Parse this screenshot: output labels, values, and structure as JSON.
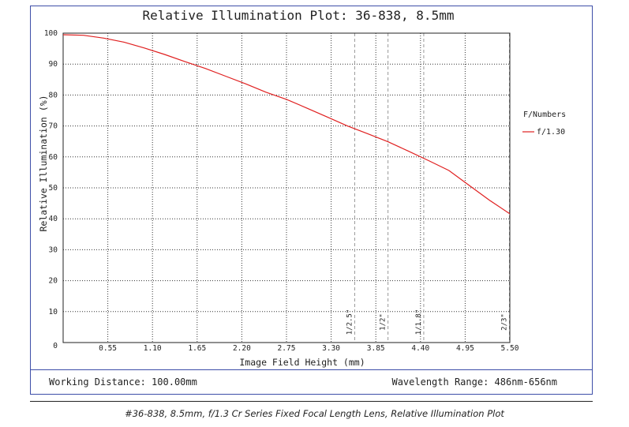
{
  "chart_data": {
    "type": "line",
    "title": "Relative Illumination Plot: 36-838, 8.5mm",
    "xlabel": "Image Field Height (mm)",
    "ylabel": "Relative Illumination (%)",
    "xlim": [
      0,
      5.5
    ],
    "ylim": [
      0,
      100
    ],
    "x_ticks": [
      "0.55",
      "1.10",
      "1.65",
      "2.20",
      "2.75",
      "3.30",
      "3.85",
      "4.40",
      "4.95",
      "5.50"
    ],
    "x_tick_values": [
      0.55,
      1.1,
      1.65,
      2.2,
      2.75,
      3.3,
      3.85,
      4.4,
      4.95,
      5.5
    ],
    "y_ticks": [
      "0",
      "10",
      "20",
      "30",
      "40",
      "50",
      "60",
      "70",
      "80",
      "90",
      "100"
    ],
    "y_tick_values": [
      0,
      10,
      20,
      30,
      40,
      50,
      60,
      70,
      80,
      90,
      100
    ],
    "grid": true,
    "legend_title": "F/Numbers",
    "legend_position": "right",
    "series": [
      {
        "name": "f/1.30",
        "color": "#e02020",
        "x": [
          0,
          0.25,
          0.5,
          0.75,
          1.0,
          1.25,
          1.5,
          1.75,
          2.0,
          2.25,
          2.5,
          2.75,
          3.0,
          3.25,
          3.5,
          3.75,
          4.0,
          4.25,
          4.5,
          4.75,
          5.0,
          5.25,
          5.5
        ],
        "y": [
          99.5,
          99.3,
          98.4,
          97.1,
          95.2,
          93.1,
          90.8,
          88.6,
          86.1,
          83.6,
          80.9,
          78.6,
          75.8,
          72.9,
          70.0,
          67.5,
          64.9,
          61.9,
          58.8,
          55.6,
          50.8,
          46.0,
          41.6
        ]
      }
    ],
    "sensor_markers": [
      {
        "label": "1/2.5\"",
        "x": 3.59
      },
      {
        "label": "1/2\"",
        "x": 4.0
      },
      {
        "label": "1/1.8\"",
        "x": 4.44
      },
      {
        "label": "2/3\"",
        "x": 5.5
      }
    ]
  },
  "footer": {
    "working_distance": "Working Distance: 100.00mm",
    "wavelength_range": "Wavelength Range: 486nm-656nm"
  },
  "caption": "#36-838, 8.5mm, f/1.3 Cr Series Fixed Focal Length Lens, Relative Illumination Plot"
}
